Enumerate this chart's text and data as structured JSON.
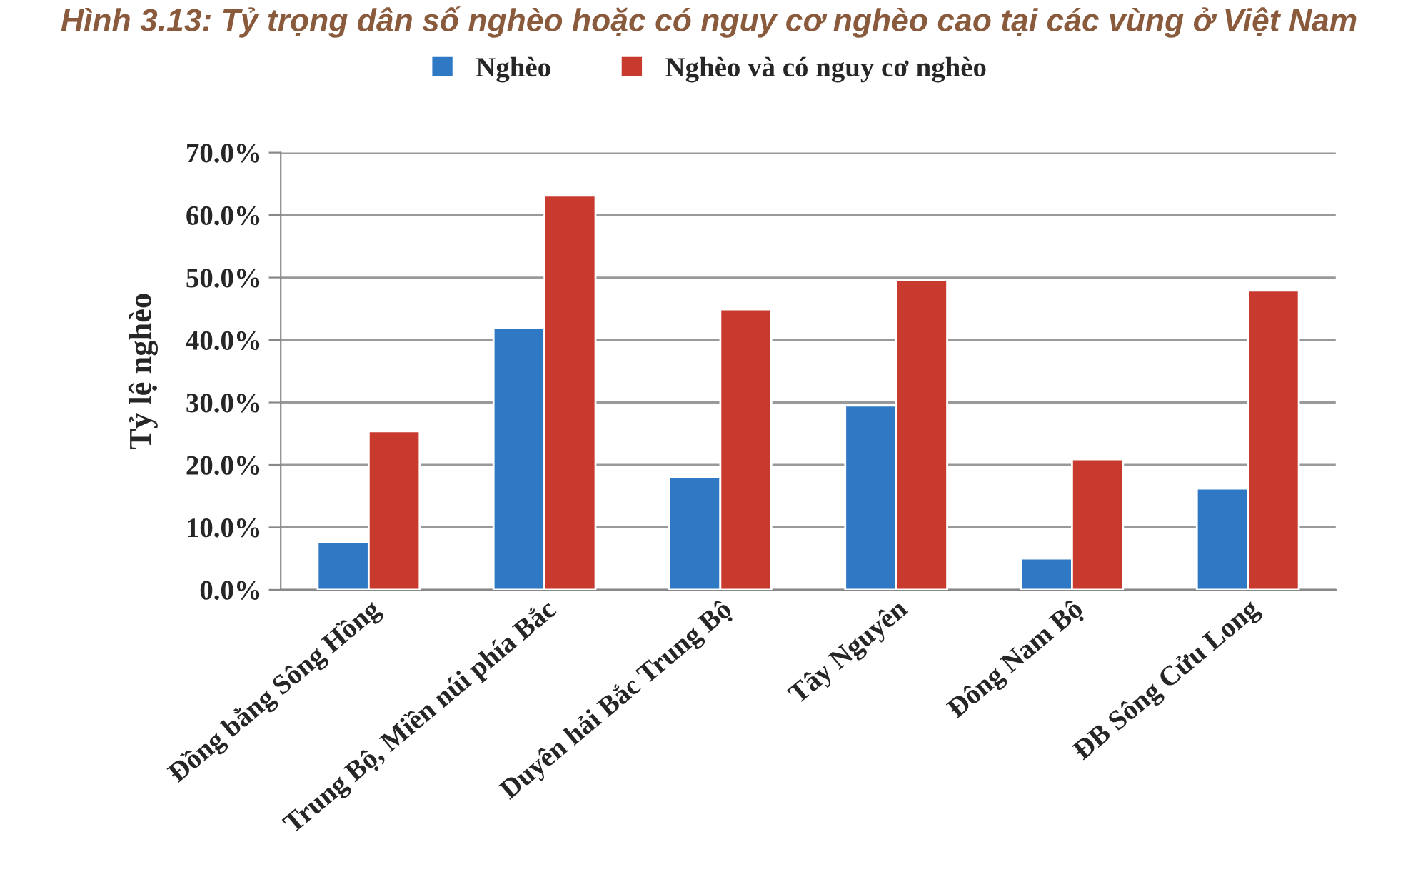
{
  "chart_data": {
    "type": "bar",
    "title": "Hình 3.13: Tỷ trọng dân số nghèo hoặc có nguy cơ nghèo cao tại các vùng ở Việt Nam",
    "ylabel": "Tỷ lệ nghèo",
    "categories": [
      "Đồng bằng Sông Hồng",
      "Trung Bộ, Miền núi phía Bắc",
      "Duyên hải Bắc Trung Bộ",
      "Tây Nguyên",
      "Đông Nam Bộ",
      "ĐB Sông Cửu Long"
    ],
    "series": [
      {
        "name": "Nghèo",
        "color": "#2e78c4",
        "values": [
          7.6,
          41.9,
          18.1,
          29.5,
          5.0,
          16.2
        ]
      },
      {
        "name": "Nghèo và có nguy cơ nghèo",
        "color": "#c8392e",
        "values": [
          25.4,
          63.1,
          44.9,
          49.6,
          20.9,
          47.9
        ]
      }
    ],
    "ylim": [
      0,
      70
    ],
    "yticks": [
      {
        "value": 0,
        "label": "0.0%"
      },
      {
        "value": 10,
        "label": "10.0%"
      },
      {
        "value": 20,
        "label": "20.0%"
      },
      {
        "value": 30,
        "label": "30.0%"
      },
      {
        "value": 40,
        "label": "40.0%"
      },
      {
        "value": 50,
        "label": "50.0%"
      },
      {
        "value": 60,
        "label": "60.0%"
      },
      {
        "value": 70,
        "label": "70.0%"
      }
    ],
    "grid": "y",
    "legend": "top"
  }
}
